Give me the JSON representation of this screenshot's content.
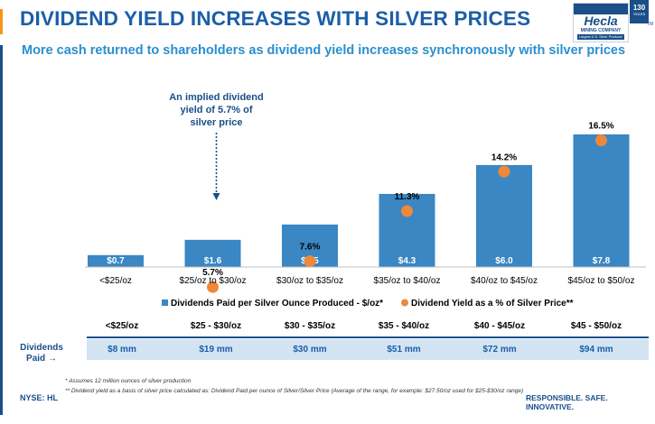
{
  "header": {
    "title": "DIVIDEND YIELD INCREASES WITH SILVER PRICES",
    "subtitle": "More cash returned to shareholders as dividend yield increases synchronously with silver prices"
  },
  "logo": {
    "name": "Hecla",
    "company": "MINING COMPANY",
    "tagline": "Largest U.S. Silver Producer",
    "years_number": "130",
    "years_label": "YEARS",
    "trademark": "TM"
  },
  "colors": {
    "primary_blue": "#1b4f8a",
    "bar_blue": "#3a87c3",
    "orange": "#f0883a",
    "title_blue": "#1b5ea8",
    "table_band": "#d3e3f2"
  },
  "chart_data": {
    "type": "bar",
    "categories": [
      "<$25/oz",
      "$25/oz to $30/oz",
      "$30/oz to $35/oz",
      "$35/oz to $40/oz",
      "$40/oz to $45/oz",
      "$45/oz to $50/oz"
    ],
    "series": [
      {
        "name": "Dividends Paid per Silver Ounce Produced - $/oz*",
        "type": "bar",
        "values": [
          0.7,
          1.6,
          2.5,
          4.3,
          6.0,
          7.8
        ],
        "labels": [
          "$0.7",
          "$1.6",
          "$2.5",
          "$4.3",
          "$6.0",
          "$7.8"
        ],
        "color": "#3a87c3"
      },
      {
        "name": "Dividend Yield as a % of Silver Price**",
        "type": "marker",
        "values": [
          null,
          5.7,
          7.6,
          11.3,
          14.2,
          16.5
        ],
        "labels": [
          "",
          "5.7%",
          "7.6%",
          "11.3%",
          "14.2%",
          "16.5%"
        ],
        "color": "#f0883a"
      }
    ],
    "annotation": {
      "text": [
        "An implied dividend",
        "yield of 5.7% of",
        "silver price"
      ],
      "category_index": 1
    },
    "legend_position": "bottom",
    "grid": false
  },
  "table": {
    "row_label": [
      "Dividends",
      "Paid →"
    ],
    "columns": [
      "<$25/oz",
      "$25 - $30/oz",
      "$30 - $35/oz",
      "$35 - $40/oz",
      "$40 - $45/oz",
      "$45 - $50/oz"
    ],
    "values": [
      "$8 mm",
      "$19 mm",
      "$30 mm",
      "$51 mm",
      "$72 mm",
      "$94 mm"
    ]
  },
  "footnotes": [
    "* Assumes 12 million ounces of silver production",
    "** Dividend yield as a basis of silver price calculated as: Dividend Paid per ounce of Silver/Silver Price (Average of the range, for example: $27.50/oz used for $25-$30/oz range)"
  ],
  "footer": {
    "ticker": "NYSE: HL",
    "tagline": "RESPONSIBLE. SAFE. INNOVATIVE."
  }
}
